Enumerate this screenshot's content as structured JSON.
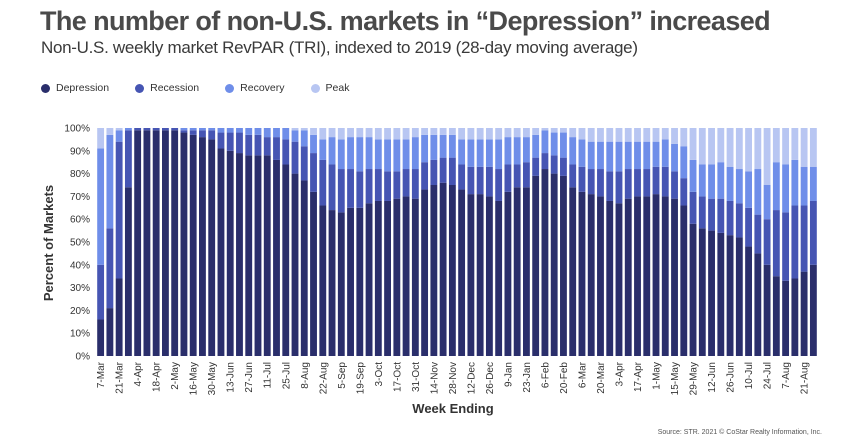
{
  "title": "The number of non-U.S. markets in “Depression” increased",
  "subtitle": "Non-U.S. weekly market RevPAR (TRI), indexed to 2019 (28-day moving average)",
  "source": "Source: STR. 2021 © CoStar Realty Information, Inc.",
  "colors": {
    "Depression": "#2a2e6b",
    "Recession": "#4655b3",
    "Recovery": "#6f8ee9",
    "Peak": "#b8c6f2"
  },
  "chart_data": {
    "type": "bar",
    "stacked": true,
    "title": "The number of non-U.S. markets in “Depression” increased",
    "xlabel": "Week Ending",
    "ylabel": "Percent of Markets",
    "ylim": [
      0,
      100
    ],
    "yticks": [
      "0%",
      "10%",
      "20%",
      "30%",
      "40%",
      "50%",
      "60%",
      "70%",
      "80%",
      "90%",
      "100%"
    ],
    "legend_position": "top-left",
    "grid": false,
    "xtick_labels": [
      "7-Mar",
      "21-Mar",
      "4-Apr",
      "18-Apr",
      "2-May",
      "16-May",
      "30-May",
      "13-Jun",
      "27-Jun",
      "11-Jul",
      "25-Jul",
      "8-Aug",
      "22-Aug",
      "5-Sep",
      "19-Sep",
      "3-Oct",
      "17-Oct",
      "31-Oct",
      "14-Nov",
      "28-Nov",
      "12-Dec",
      "26-Dec",
      "9-Jan",
      "23-Jan",
      "6-Feb",
      "20-Feb",
      "6-Mar",
      "20-Mar",
      "3-Apr",
      "17-Apr",
      "1-May",
      "15-May",
      "29-May",
      "12-Jun",
      "26-Jun",
      "10-Jul",
      "24-Jul",
      "7-Aug",
      "21-Aug"
    ],
    "series": [
      {
        "name": "Depression",
        "values": [
          16,
          21,
          34,
          74,
          99,
          99,
          99,
          99,
          99,
          98,
          97,
          96,
          95,
          91,
          90,
          89,
          88,
          88,
          88,
          86,
          84,
          80,
          77,
          72,
          66,
          64,
          63,
          65,
          65,
          67,
          68,
          68,
          69,
          70,
          69,
          73,
          75,
          76,
          75,
          73,
          71,
          71,
          70,
          68,
          72,
          74,
          74,
          79,
          82,
          80,
          79,
          74,
          72,
          71,
          70,
          68,
          67,
          69,
          70,
          70,
          71,
          70,
          69,
          66,
          58,
          56,
          55,
          54,
          53,
          52,
          48,
          45,
          40,
          35,
          33,
          34,
          37,
          40
        ]
      },
      {
        "name": "Recession",
        "values": [
          24,
          35,
          60,
          25,
          1,
          1,
          1,
          1,
          1,
          1,
          2,
          3,
          4,
          7,
          8,
          9,
          9,
          9,
          8,
          10,
          11,
          14,
          15,
          17,
          20,
          20,
          19,
          17,
          16,
          15,
          14,
          13,
          12,
          12,
          13,
          12,
          11,
          11,
          12,
          11,
          12,
          12,
          13,
          14,
          12,
          10,
          11,
          8,
          7,
          8,
          8,
          10,
          11,
          11,
          12,
          13,
          14,
          13,
          12,
          12,
          12,
          13,
          12,
          12,
          14,
          14,
          14,
          15,
          15,
          15,
          17,
          17,
          20,
          29,
          30,
          32,
          29,
          28
        ]
      },
      {
        "name": "Recovery",
        "values": [
          51,
          41,
          5,
          1,
          0,
          0,
          0,
          0,
          0,
          1,
          1,
          1,
          1,
          2,
          2,
          2,
          3,
          3,
          4,
          4,
          5,
          5,
          7,
          8,
          9,
          12,
          13,
          14,
          15,
          14,
          13,
          14,
          14,
          13,
          14,
          12,
          11,
          10,
          10,
          11,
          12,
          12,
          12,
          13,
          12,
          12,
          11,
          10,
          10,
          10,
          11,
          12,
          12,
          12,
          12,
          13,
          13,
          12,
          12,
          12,
          11,
          12,
          12,
          14,
          14,
          14,
          15,
          16,
          15,
          15,
          16,
          20,
          15,
          21,
          21,
          20,
          17,
          15
        ]
      },
      {
        "name": "Peak",
        "values": [
          9,
          3,
          1,
          0,
          0,
          0,
          0,
          0,
          0,
          0,
          0,
          0,
          0,
          0,
          0,
          0,
          0,
          0,
          0,
          0,
          0,
          1,
          1,
          3,
          5,
          4,
          5,
          4,
          4,
          4,
          5,
          5,
          5,
          5,
          4,
          3,
          3,
          3,
          3,
          5,
          5,
          5,
          5,
          5,
          4,
          4,
          4,
          3,
          1,
          2,
          2,
          4,
          5,
          6,
          6,
          6,
          6,
          6,
          6,
          6,
          6,
          5,
          7,
          8,
          14,
          16,
          16,
          15,
          17,
          18,
          19,
          18,
          25,
          15,
          16,
          14,
          17,
          17
        ]
      }
    ]
  }
}
